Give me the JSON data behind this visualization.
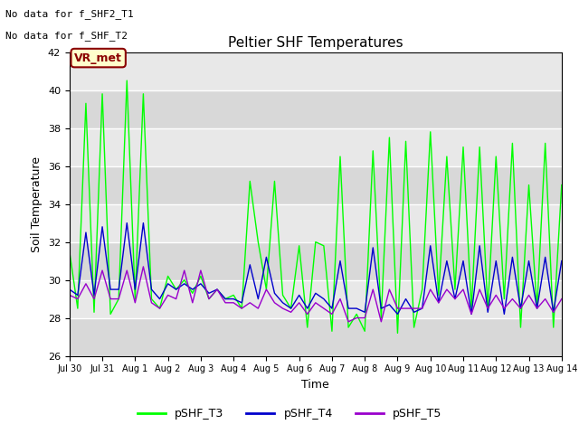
{
  "title": "Peltier SHF Temperatures",
  "xlabel": "Time",
  "ylabel": "Soil Temperature",
  "ylim": [
    26,
    42
  ],
  "yticks": [
    26,
    28,
    30,
    32,
    34,
    36,
    38,
    40,
    42
  ],
  "no_data_text": [
    "No data for f_SHF2_T1",
    "No data for f_SHF_T2"
  ],
  "legend_label": "VR_met",
  "series_labels": [
    "pSHF_T3",
    "pSHF_T4",
    "pSHF_T5"
  ],
  "series_colors": [
    "#00ff00",
    "#0000cc",
    "#9900cc"
  ],
  "background_color": "#e8e8e8",
  "x_tick_labels": [
    "Jul 30",
    "Jul 31",
    "Aug 1",
    "Aug 2",
    "Aug 3",
    "Aug 4",
    "Aug 5",
    "Aug 6",
    "Aug 7",
    "Aug 8",
    "Aug 9",
    "Aug 10",
    "Aug 11",
    "Aug 12",
    "Aug 13",
    "Aug 14"
  ],
  "num_days": 15,
  "pSHF_T3": [
    31.5,
    28.5,
    39.3,
    28.3,
    39.8,
    28.2,
    29.0,
    40.5,
    29.0,
    39.8,
    29.0,
    28.5,
    30.2,
    29.5,
    30.0,
    29.3,
    30.2,
    29.0,
    29.5,
    29.0,
    29.2,
    28.5,
    35.2,
    32.0,
    29.5,
    35.2,
    29.2,
    28.5,
    31.8,
    27.5,
    32.0,
    31.8,
    27.3,
    36.5,
    27.5,
    28.2,
    27.3,
    36.8,
    28.0,
    37.5,
    27.2,
    37.3,
    27.5,
    29.5,
    37.8,
    29.2,
    36.5,
    29.5,
    37.0,
    28.5,
    37.0,
    28.5,
    36.5,
    29.0,
    37.2,
    27.5,
    35.0,
    28.5,
    37.2,
    27.5,
    35.0
  ],
  "pSHF_T4": [
    29.5,
    29.2,
    32.5,
    29.2,
    32.8,
    29.5,
    29.5,
    33.0,
    29.5,
    33.0,
    29.5,
    29.0,
    29.8,
    29.5,
    29.8,
    29.5,
    29.8,
    29.3,
    29.5,
    29.0,
    29.0,
    28.8,
    30.8,
    29.0,
    31.2,
    29.3,
    28.8,
    28.5,
    29.2,
    28.5,
    29.3,
    29.0,
    28.5,
    31.0,
    28.5,
    28.5,
    28.3,
    31.7,
    28.5,
    28.7,
    28.2,
    29.0,
    28.3,
    28.5,
    31.8,
    28.8,
    31.0,
    29.0,
    31.0,
    28.2,
    31.8,
    28.3,
    31.0,
    28.2,
    31.2,
    28.5,
    31.0,
    28.5,
    31.2,
    28.3,
    31.0
  ],
  "pSHF_T5": [
    29.2,
    29.0,
    29.8,
    29.0,
    30.5,
    29.0,
    29.0,
    30.5,
    28.8,
    30.7,
    28.8,
    28.5,
    29.2,
    29.0,
    30.5,
    28.8,
    30.5,
    29.0,
    29.5,
    28.8,
    28.8,
    28.5,
    28.8,
    28.5,
    29.5,
    28.8,
    28.5,
    28.3,
    28.8,
    28.2,
    28.8,
    28.5,
    28.2,
    29.0,
    27.8,
    28.0,
    28.0,
    29.5,
    27.8,
    29.5,
    28.5,
    28.5,
    28.5,
    28.5,
    29.5,
    28.8,
    29.5,
    29.0,
    29.5,
    28.2,
    29.5,
    28.5,
    29.2,
    28.5,
    29.0,
    28.5,
    29.2,
    28.5,
    29.0,
    28.3,
    29.0
  ]
}
